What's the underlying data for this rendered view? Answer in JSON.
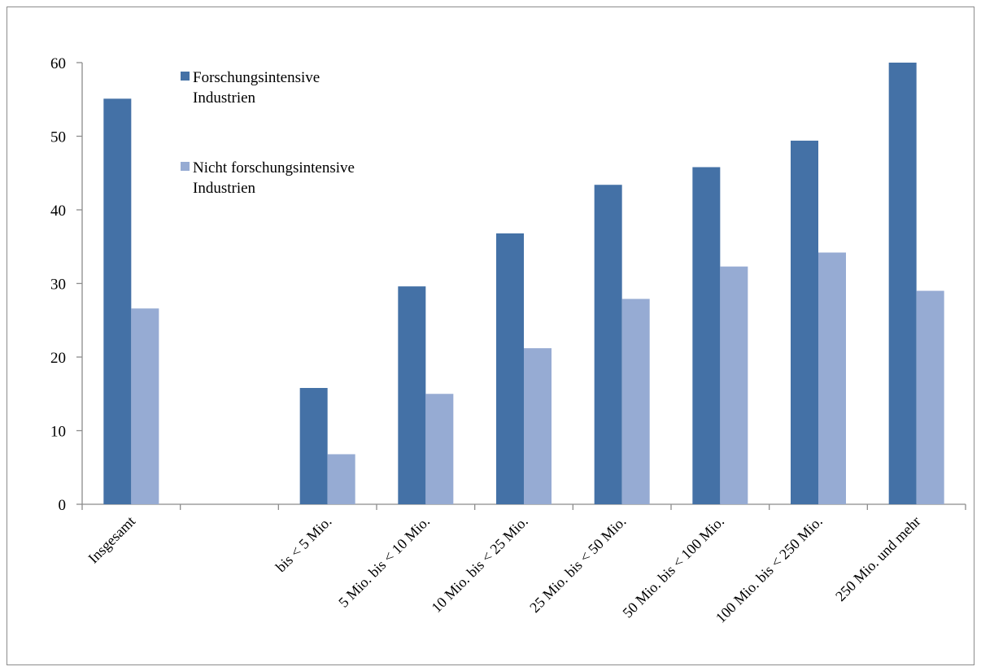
{
  "chart_data": {
    "type": "bar",
    "title": "",
    "xlabel": "",
    "ylabel": "",
    "ylim": [
      0,
      60
    ],
    "yticks": [
      0,
      10,
      20,
      30,
      40,
      50,
      60
    ],
    "grid": false,
    "legend_position": "top-left",
    "categories": [
      "Insgesamt",
      "",
      "bis < 5 Mio.",
      "5 Mio. bis < 10 Mio.",
      "10 Mio. bis < 25 Mio.",
      "25 Mio. bis < 50 Mio.",
      "50 Mio. bis < 100 Mio.",
      "100 Mio. bis < 250 Mio.",
      "250 Mio. und mehr"
    ],
    "series": [
      {
        "name": "Forschungsintensive Industrien",
        "legend_lines": [
          "Forschungsintensive",
          "Industrien"
        ],
        "color": "#4471a6",
        "values": [
          55.1,
          null,
          15.8,
          29.6,
          36.8,
          43.4,
          45.8,
          49.4,
          60.0
        ]
      },
      {
        "name": "Nicht forschungsintensive Industrien",
        "legend_lines": [
          "Nicht forschungsintensive",
          "Industrien"
        ],
        "color": "#96abd3",
        "values": [
          26.6,
          null,
          6.8,
          15.0,
          21.2,
          27.9,
          32.3,
          34.2,
          29.0
        ]
      }
    ]
  }
}
